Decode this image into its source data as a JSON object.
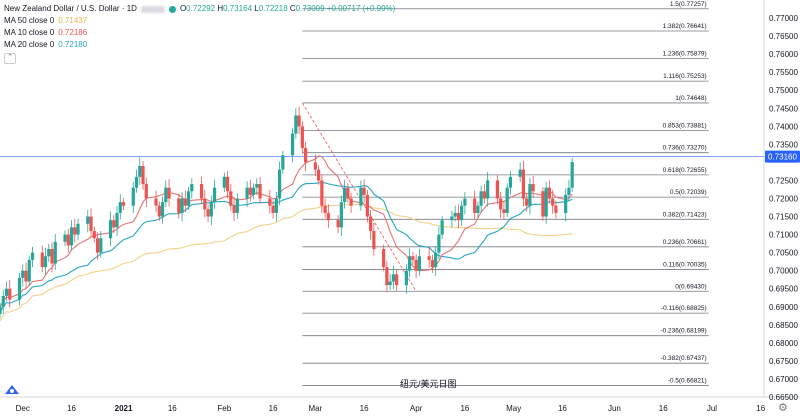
{
  "legend": {
    "title": "New Zealand Dollar / U.S. Dollar · 1D",
    "open_label": "O",
    "open": "0.72292",
    "high_label": "H",
    "high": "0.73164",
    "low_label": "L",
    "low": "0.72218",
    "close_label": "C",
    "close": "0.73009",
    "change": "+0.00717 (+0.99%)",
    "ma50_label": "MA 50 close 0",
    "ma50_value": "0.71437",
    "ma10_label": "MA 10 close 0",
    "ma10_value": "0.72186",
    "ma20_label": "MA 20 close 0",
    "ma20_value": "0.72180"
  },
  "annotation": "纽元/美元日图",
  "colors": {
    "up": "#26a69a",
    "down": "#ef5350",
    "ma10": "#e57373",
    "ma20": "#26a6c6",
    "ma50": "#f2d28a",
    "price_line": "#2962ff",
    "fib_line": "#787b86",
    "last_price_bg": "#2962ff"
  },
  "chart_data": {
    "type": "candlestick",
    "symbol": "NZD/USD",
    "ylim": [
      0.665,
      0.775
    ],
    "x_range": [
      "2020-11-24",
      "2021-07-17"
    ],
    "x_ticks": [
      {
        "date": "2020-12-01",
        "label": "Dec"
      },
      {
        "date": "2020-12-16",
        "label": "16"
      },
      {
        "date": "2021-01-01",
        "label": "2021"
      },
      {
        "date": "2021-01-16",
        "label": "16"
      },
      {
        "date": "2021-02-01",
        "label": "Feb"
      },
      {
        "date": "2021-02-16",
        "label": "16"
      },
      {
        "date": "2021-03-01",
        "label": "Mar"
      },
      {
        "date": "2021-03-16",
        "label": "16"
      },
      {
        "date": "2021-04-01",
        "label": "Apr"
      },
      {
        "date": "2021-04-16",
        "label": "16"
      },
      {
        "date": "2021-05-01",
        "label": "May"
      },
      {
        "date": "2021-05-16",
        "label": "16"
      },
      {
        "date": "2021-06-01",
        "label": "Jun"
      },
      {
        "date": "2021-06-16",
        "label": "16"
      },
      {
        "date": "2021-07-01",
        "label": "Jul"
      },
      {
        "date": "2021-07-16",
        "label": "16"
      }
    ],
    "y_ticks": [
      "0.77000",
      "0.76500",
      "0.76000",
      "0.75500",
      "0.75000",
      "0.74500",
      "0.74000",
      "0.73500",
      "0.72500",
      "0.72000",
      "0.71500",
      "0.71000",
      "0.70500",
      "0.70000",
      "0.69500",
      "0.69000",
      "0.68500",
      "0.68000",
      "0.67500",
      "0.67000",
      "0.66500"
    ],
    "last_price": "0.73160",
    "last_price_value": 0.7316,
    "horizontal_line": 0.7316,
    "fibonacci": {
      "start_date": "2021-02-25",
      "end_date": "2021-06-30",
      "high": 0.74648,
      "low": 0.6943,
      "levels": [
        {
          "ratio": "1.5",
          "price": "0.77257",
          "value": 0.77257
        },
        {
          "ratio": "1.382",
          "price": "0.76641",
          "value": 0.76641
        },
        {
          "ratio": "1.236",
          "price": "0.75879",
          "value": 0.75879
        },
        {
          "ratio": "1.116",
          "price": "0.75253",
          "value": 0.75253
        },
        {
          "ratio": "1",
          "price": "0.74648",
          "value": 0.74648
        },
        {
          "ratio": "0.853",
          "price": "0.73881",
          "value": 0.73881
        },
        {
          "ratio": "0.736",
          "price": "0.73270",
          "value": 0.7327
        },
        {
          "ratio": "0.618",
          "price": "0.72655",
          "value": 0.72655
        },
        {
          "ratio": "0.5",
          "price": "0.72039",
          "value": 0.72039
        },
        {
          "ratio": "0.382",
          "price": "0.71423",
          "value": 0.71423
        },
        {
          "ratio": "0.236",
          "price": "0.70661",
          "value": 0.70661
        },
        {
          "ratio": "0.116",
          "price": "0.70035",
          "value": 0.70035
        },
        {
          "ratio": "0",
          "price": "0.69430",
          "value": 0.6943
        },
        {
          "ratio": "-0.116",
          "price": "0.68825",
          "value": 0.68825
        },
        {
          "ratio": "-0.236",
          "price": "0.68199",
          "value": 0.68199
        },
        {
          "ratio": "-0.382",
          "price": "0.67437",
          "value": 0.67437
        },
        {
          "ratio": "-0.5",
          "price": "0.66821",
          "value": 0.66821
        }
      ]
    },
    "trend_line": {
      "start": [
        "2021-02-25",
        0.74648
      ],
      "end": [
        "2021-04-01",
        0.6943
      ]
    },
    "closes": [
      0.69,
      0.693,
      0.695,
      0.692,
      0.698,
      0.7,
      0.697,
      0.703,
      0.705,
      0.701,
      0.704,
      0.706,
      0.702,
      0.708,
      0.71,
      0.707,
      0.712,
      0.71,
      0.713,
      0.715,
      0.711,
      0.709,
      0.705,
      0.709,
      0.714,
      0.712,
      0.716,
      0.719,
      0.718,
      0.723,
      0.726,
      0.729,
      0.724,
      0.72,
      0.718,
      0.715,
      0.719,
      0.723,
      0.72,
      0.716,
      0.72,
      0.718,
      0.722,
      0.724,
      0.72,
      0.717,
      0.715,
      0.719,
      0.723,
      0.726,
      0.722,
      0.718,
      0.716,
      0.72,
      0.723,
      0.721,
      0.723,
      0.724,
      0.72,
      0.718,
      0.716,
      0.72,
      0.728,
      0.732,
      0.738,
      0.743,
      0.74,
      0.734,
      0.73,
      0.728,
      0.725,
      0.718,
      0.716,
      0.714,
      0.712,
      0.719,
      0.723,
      0.72,
      0.718,
      0.723,
      0.721,
      0.715,
      0.711,
      0.706,
      0.701,
      0.696,
      0.697,
      0.699,
      0.696,
      0.7,
      0.704,
      0.703,
      0.7,
      0.704,
      0.703,
      0.701,
      0.705,
      0.71,
      0.714,
      0.715,
      0.716,
      0.714,
      0.718,
      0.72,
      0.716,
      0.718,
      0.722,
      0.72,
      0.725,
      0.72,
      0.717,
      0.716,
      0.723,
      0.726,
      0.728,
      0.72,
      0.718,
      0.724,
      0.722,
      0.715,
      0.723,
      0.72,
      0.718,
      0.716,
      0.721,
      0.723,
      0.7301
    ]
  }
}
